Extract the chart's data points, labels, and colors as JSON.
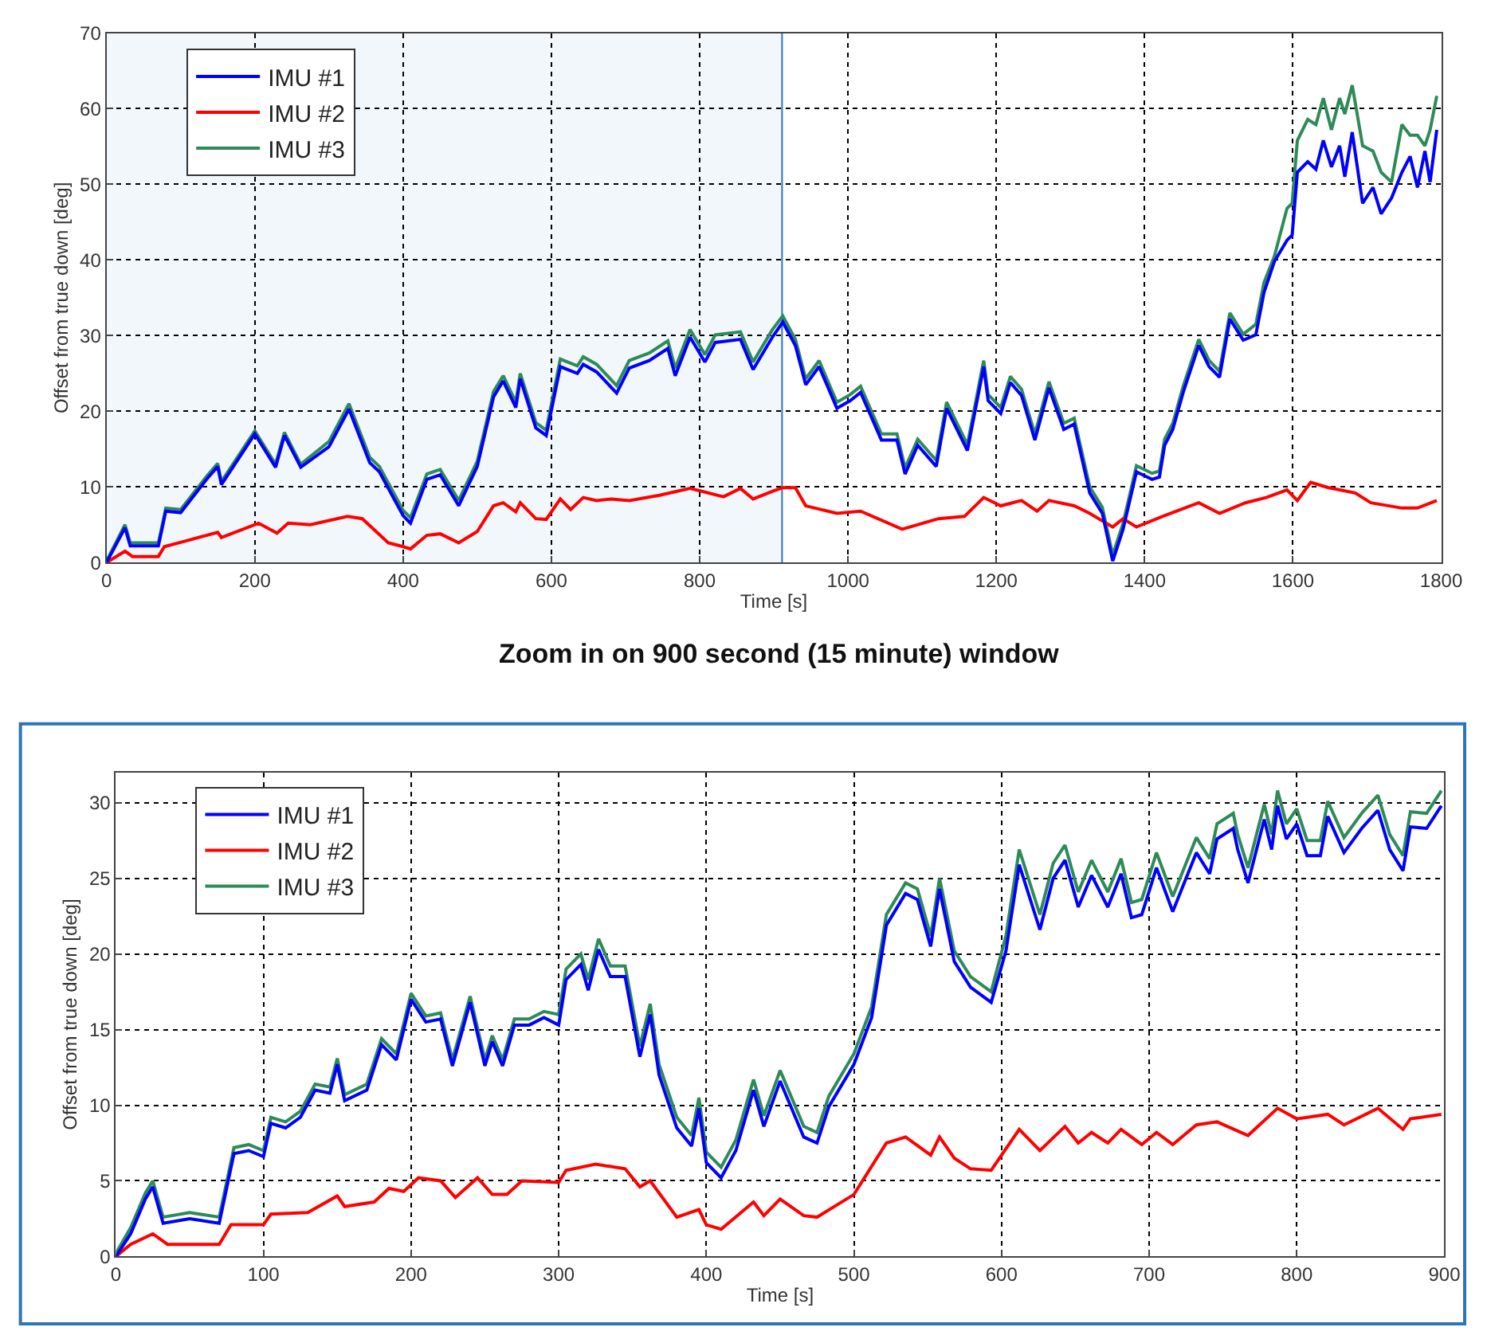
{
  "chart_data": [
    {
      "type": "line",
      "xlabel": "Time [s]",
      "ylabel": "Offset from true down [deg]",
      "xlim": [
        0,
        1800
      ],
      "xticks": [
        0,
        200,
        400,
        600,
        800,
        1000,
        1200,
        1400,
        1600,
        1800
      ],
      "ylim": [
        0,
        70
      ],
      "yticks": [
        0,
        10,
        20,
        30,
        40,
        50,
        60,
        70
      ],
      "grid": true,
      "legend": "top left",
      "line_style": "solid",
      "marker": "none",
      "bands": [
        {
          "axis": "x",
          "from": 0,
          "to": 910,
          "color": "#2e75b6"
        }
      ],
      "series": [
        {
          "name": "IMU #1",
          "color": "#0000ff",
          "x": [
            0,
            25,
            32,
            70,
            80,
            100,
            135,
            150,
            155,
            200,
            228,
            240,
            262,
            300,
            327,
            355,
            368,
            400,
            410,
            432,
            450,
            475,
            500,
            522,
            535,
            552,
            558,
            579,
            593,
            612,
            635,
            643,
            661,
            688,
            705,
            732,
            757,
            767,
            787,
            807,
            821,
            855,
            872,
            898,
            912,
            929,
            943,
            961,
            985,
            1003,
            1017,
            1045,
            1066,
            1077,
            1094,
            1119,
            1133,
            1161,
            1183,
            1189,
            1206,
            1219,
            1234,
            1252,
            1271,
            1291,
            1305,
            1326,
            1343,
            1357,
            1371,
            1389,
            1410,
            1420,
            1427,
            1438,
            1452,
            1473,
            1487,
            1501,
            1515,
            1533,
            1550,
            1561,
            1575,
            1592,
            1599,
            1606,
            1620,
            1631,
            1641,
            1652,
            1663,
            1670,
            1680,
            1694,
            1708,
            1719,
            1733,
            1747,
            1758,
            1768,
            1778,
            1785,
            1794
          ],
          "values": [
            0,
            4.6,
            2.2,
            2.2,
            6.8,
            6.6,
            11,
            12.7,
            10.3,
            17,
            12.6,
            16.8,
            12.6,
            15.3,
            20.3,
            13.2,
            12,
            6.2,
            5.2,
            11,
            11.6,
            7.5,
            12.7,
            21.9,
            24,
            20.5,
            24.3,
            17.8,
            16.8,
            25.9,
            25,
            26.2,
            25.2,
            22.4,
            25.7,
            26.7,
            28.3,
            24.7,
            29.8,
            26.5,
            29.1,
            29.5,
            25.5,
            29.8,
            31.8,
            28.7,
            23.5,
            25.9,
            20.4,
            21.4,
            22.5,
            16.2,
            16.2,
            11.7,
            15.5,
            12.7,
            20.4,
            14.8,
            25.9,
            21.4,
            19.7,
            23.8,
            22.1,
            16.2,
            23.1,
            17.6,
            18.3,
            9.2,
            6.5,
            0.2,
            4.4,
            12,
            11,
            11.3,
            15.5,
            17.6,
            22.5,
            28.7,
            25.9,
            24.5,
            32.2,
            29.4,
            30.1,
            35.7,
            39.8,
            42.6,
            43.3,
            51.6,
            53,
            52,
            55.8,
            52.3,
            55.1,
            51,
            56.9,
            47.5,
            49.6,
            46.1,
            48.2,
            51.6,
            53.7,
            49.6,
            54.4,
            50.3,
            57.2
          ]
        },
        {
          "name": "IMU #2",
          "color": "#ff0000",
          "x": [
            0,
            25,
            35,
            70,
            78,
            105,
            150,
            155,
            205,
            230,
            245,
            275,
            325,
            345,
            380,
            400,
            410,
            432,
            450,
            475,
            500,
            522,
            535,
            552,
            558,
            579,
            593,
            612,
            626,
            643,
            661,
            681,
            705,
            746,
            787,
            832,
            855,
            872,
            898,
            912,
            929,
            943,
            985,
            1017,
            1073,
            1122,
            1157,
            1183,
            1206,
            1234,
            1255,
            1271,
            1305,
            1326,
            1357,
            1371,
            1389,
            1424,
            1473,
            1501,
            1536,
            1564,
            1592,
            1606,
            1624,
            1648,
            1684,
            1705,
            1747,
            1768,
            1794
          ],
          "values": [
            0,
            1.5,
            0.8,
            0.8,
            2.1,
            2.8,
            4,
            3.3,
            5.2,
            3.9,
            5.2,
            5,
            6.1,
            5.8,
            2.6,
            2.1,
            1.8,
            3.6,
            3.8,
            2.6,
            4.1,
            7.5,
            7.9,
            6.7,
            7.9,
            5.8,
            5.7,
            8.4,
            7,
            8.6,
            8.2,
            8.4,
            8.2,
            8.9,
            9.8,
            8.7,
            9.8,
            8.4,
            9.4,
            9.9,
            9.9,
            7.5,
            6.5,
            6.8,
            4.4,
            5.8,
            6.1,
            8.6,
            7.5,
            8.2,
            6.8,
            8.2,
            7.5,
            6.5,
            4.7,
            5.8,
            4.7,
            6.1,
            7.9,
            6.5,
            7.9,
            8.6,
            9.6,
            8.2,
            10.6,
            9.9,
            9.2,
            7.9,
            7.2,
            7.2,
            8.2
          ]
        },
        {
          "name": "IMU #3",
          "color": "#2e8b57",
          "x": [
            0,
            25,
            32,
            70,
            80,
            100,
            135,
            150,
            155,
            200,
            228,
            240,
            262,
            300,
            327,
            355,
            368,
            400,
            410,
            432,
            450,
            475,
            500,
            522,
            535,
            552,
            558,
            579,
            593,
            612,
            635,
            643,
            661,
            688,
            705,
            732,
            757,
            767,
            787,
            807,
            821,
            855,
            872,
            898,
            912,
            929,
            943,
            961,
            985,
            1003,
            1017,
            1045,
            1066,
            1077,
            1094,
            1119,
            1133,
            1161,
            1183,
            1189,
            1206,
            1219,
            1234,
            1252,
            1271,
            1291,
            1305,
            1326,
            1343,
            1357,
            1371,
            1389,
            1410,
            1420,
            1427,
            1438,
            1452,
            1473,
            1487,
            1501,
            1515,
            1533,
            1550,
            1561,
            1575,
            1592,
            1599,
            1606,
            1620,
            1631,
            1641,
            1652,
            1663,
            1670,
            1680,
            1694,
            1708,
            1719,
            1733,
            1747,
            1758,
            1768,
            1778,
            1785,
            1794
          ],
          "values": [
            0.2,
            5.0,
            2.6,
            2.6,
            7.2,
            7.0,
            11.4,
            13.1,
            10.7,
            17.4,
            13.0,
            17.2,
            13.0,
            16.0,
            21.0,
            13.9,
            12.7,
            6.9,
            5.9,
            11.7,
            12.3,
            8.2,
            13.4,
            22.6,
            24.7,
            21.2,
            25.0,
            18.5,
            17.5,
            26.9,
            26,
            27.2,
            26.2,
            23.4,
            26.7,
            27.7,
            29.3,
            25.7,
            30.8,
            27.5,
            30.1,
            30.5,
            26.5,
            30.8,
            32.6,
            29.5,
            24.3,
            26.7,
            21.2,
            22.2,
            23.3,
            17.0,
            17.0,
            12.5,
            16.3,
            13.5,
            21.2,
            15.6,
            26.7,
            22.2,
            20.5,
            24.6,
            22.9,
            17.0,
            23.9,
            18.4,
            19.1,
            10.0,
            7.3,
            1.0,
            5.2,
            12.8,
            11.8,
            12.1,
            16.3,
            18.4,
            23.3,
            29.5,
            26.7,
            25.3,
            33.0,
            30.2,
            31.5,
            37,
            40.5,
            46.8,
            47.5,
            55.8,
            58.6,
            57.9,
            61.4,
            57.2,
            61.4,
            59.3,
            63.1,
            55.1,
            54.4,
            51.6,
            50.3,
            57.9,
            56.5,
            56.5,
            55.1,
            57.2,
            61.7
          ]
        }
      ]
    },
    {
      "type": "line",
      "title": "Zoom in on 900 second (15 minute) window",
      "xlabel": "Time [s]",
      "ylabel": "Offset from true down [deg]",
      "xlim": [
        0,
        900
      ],
      "xticks": [
        0,
        100,
        200,
        300,
        400,
        500,
        600,
        700,
        800,
        900
      ],
      "ylim": [
        0,
        32
      ],
      "yticks": [
        0,
        5,
        10,
        15,
        20,
        25,
        30
      ],
      "grid": true,
      "legend": "top left",
      "line_style": "solid",
      "marker": "none",
      "series": [
        {
          "name": "IMU #1",
          "color": "#0000ff",
          "x": [
            0,
            10,
            20,
            25,
            32,
            50,
            70,
            75,
            80,
            90,
            100,
            105,
            115,
            125,
            135,
            145,
            150,
            155,
            170,
            180,
            190,
            200,
            210,
            220,
            228,
            240,
            250,
            255,
            262,
            270,
            280,
            290,
            300,
            305,
            315,
            320,
            327,
            335,
            345,
            355,
            362,
            368,
            380,
            390,
            395,
            400,
            410,
            420,
            432,
            439,
            450,
            466,
            475,
            483,
            500,
            512,
            522,
            535,
            543,
            552,
            558,
            568,
            579,
            593,
            603,
            612,
            626,
            635,
            643,
            652,
            661,
            672,
            681,
            688,
            695,
            705,
            716,
            725,
            732,
            741,
            746,
            757,
            760,
            767,
            778,
            783,
            787,
            793,
            800,
            807,
            816,
            821,
            832,
            844,
            855,
            863,
            872,
            877,
            888,
            898
          ],
          "values": [
            0,
            1.5,
            3.8,
            4.6,
            2.2,
            2.5,
            2.2,
            4.5,
            6.8,
            7.0,
            6.6,
            8.8,
            8.5,
            9.2,
            11,
            10.8,
            12.7,
            10.3,
            11,
            14,
            13,
            17,
            15.5,
            15.7,
            12.6,
            16.8,
            12.6,
            14.2,
            12.6,
            15.3,
            15.3,
            15.8,
            15.3,
            18.3,
            19.3,
            17.6,
            20.3,
            18.5,
            18.5,
            13.2,
            16,
            12,
            8.5,
            7.3,
            9.8,
            6.2,
            5.2,
            7,
            11,
            8.6,
            11.6,
            7.9,
            7.5,
            9.9,
            12.7,
            15.8,
            21.9,
            24,
            23.6,
            20.5,
            24.3,
            19.5,
            17.8,
            16.8,
            20.2,
            25.9,
            21.6,
            25,
            26.2,
            23.1,
            25.2,
            23.1,
            25.3,
            22.4,
            22.6,
            25.7,
            22.8,
            25,
            26.7,
            25.3,
            27.6,
            28.3,
            26.9,
            24.7,
            28.9,
            26.9,
            29.8,
            27.6,
            28.6,
            26.5,
            26.5,
            29.1,
            26.7,
            28.3,
            29.5,
            26.9,
            25.5,
            28.4,
            28.3,
            29.8
          ]
        },
        {
          "name": "IMU #2",
          "color": "#ff0000",
          "x": [
            0,
            10,
            25,
            35,
            70,
            78,
            100,
            105,
            130,
            150,
            155,
            175,
            185,
            195,
            205,
            220,
            230,
            245,
            255,
            265,
            275,
            300,
            305,
            325,
            345,
            355,
            362,
            380,
            395,
            400,
            410,
            432,
            439,
            450,
            466,
            475,
            500,
            522,
            535,
            552,
            558,
            568,
            579,
            593,
            612,
            626,
            643,
            652,
            661,
            672,
            681,
            695,
            705,
            716,
            732,
            746,
            767,
            787,
            800,
            821,
            832,
            855,
            872,
            877,
            898
          ],
          "values": [
            0,
            0.8,
            1.5,
            0.8,
            0.8,
            2.1,
            2.1,
            2.8,
            2.9,
            4,
            3.3,
            3.6,
            4.5,
            4.3,
            5.2,
            5,
            3.9,
            5.2,
            4.1,
            4.1,
            5,
            4.9,
            5.7,
            6.1,
            5.8,
            4.6,
            5,
            2.6,
            3.1,
            2.1,
            1.8,
            3.6,
            2.7,
            3.8,
            2.7,
            2.6,
            4.1,
            7.5,
            7.9,
            6.7,
            7.9,
            6.5,
            5.8,
            5.7,
            8.4,
            7,
            8.6,
            7.5,
            8.2,
            7.5,
            8.4,
            7.4,
            8.2,
            7.4,
            8.7,
            8.9,
            8,
            9.8,
            9.1,
            9.4,
            8.7,
            9.8,
            8.4,
            9.1,
            9.4
          ]
        },
        {
          "name": "IMU #3",
          "color": "#2e8b57",
          "x": [
            0,
            10,
            20,
            25,
            32,
            50,
            70,
            75,
            80,
            90,
            100,
            105,
            115,
            125,
            135,
            145,
            150,
            155,
            170,
            180,
            190,
            200,
            210,
            220,
            228,
            240,
            250,
            255,
            262,
            270,
            280,
            290,
            300,
            305,
            315,
            320,
            327,
            335,
            345,
            355,
            362,
            368,
            380,
            390,
            395,
            400,
            410,
            420,
            432,
            439,
            450,
            466,
            475,
            483,
            500,
            512,
            522,
            535,
            543,
            552,
            558,
            568,
            579,
            593,
            603,
            612,
            626,
            635,
            643,
            652,
            661,
            672,
            681,
            688,
            695,
            705,
            716,
            725,
            732,
            741,
            746,
            757,
            760,
            767,
            778,
            783,
            787,
            793,
            800,
            807,
            816,
            821,
            832,
            844,
            855,
            863,
            872,
            877,
            888,
            898
          ],
          "values": [
            0.2,
            1.9,
            4.2,
            5.0,
            2.6,
            2.9,
            2.6,
            4.9,
            7.2,
            7.4,
            7.0,
            9.2,
            8.9,
            9.6,
            11.4,
            11.2,
            13.1,
            10.7,
            11.4,
            14.4,
            13.4,
            17.4,
            15.9,
            16.1,
            13.0,
            17.2,
            13.0,
            14.6,
            13.0,
            15.7,
            15.7,
            16.2,
            16.0,
            19.0,
            20.0,
            18.3,
            21.0,
            19.2,
            19.2,
            13.9,
            16.7,
            12.7,
            9.2,
            8.0,
            10.5,
            6.9,
            5.9,
            7.7,
            11.7,
            9.3,
            12.3,
            8.6,
            8.2,
            10.6,
            13.4,
            16.5,
            22.6,
            24.7,
            24.3,
            21.2,
            25.0,
            20.2,
            18.5,
            17.5,
            21.2,
            26.9,
            22.6,
            26,
            27.2,
            24.1,
            26.2,
            24.1,
            26.3,
            23.4,
            23.6,
            26.7,
            23.8,
            26,
            27.7,
            26.3,
            28.6,
            29.3,
            27.9,
            25.7,
            29.9,
            27.9,
            30.8,
            28.6,
            29.6,
            27.5,
            27.5,
            30.1,
            27.7,
            29.3,
            30.5,
            27.9,
            26.5,
            29.4,
            29.3,
            30.8
          ]
        }
      ]
    }
  ]
}
